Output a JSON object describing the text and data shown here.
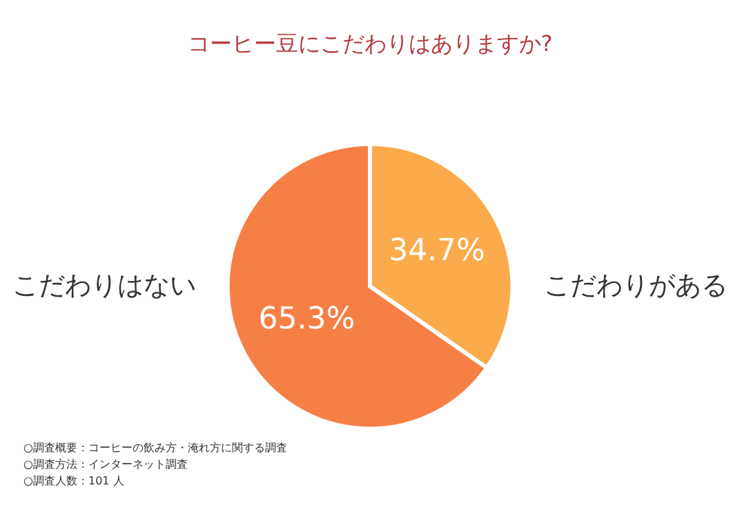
{
  "chart_data": {
    "type": "pie",
    "title": "コーヒー豆にこだわりはありますか?",
    "categories": [
      "こだわりがある",
      "こだわりはない"
    ],
    "values": [
      34.7,
      65.3
    ],
    "colors": [
      "#fbab4b",
      "#f67f46"
    ],
    "value_labels": [
      "34.7%",
      "65.3%"
    ],
    "legend": false,
    "annotations": [
      "○調査概要：コーヒーの飲み方・淹れ方に関する調査",
      "○調査方法：インターネット調査",
      "○調査人数：101 人"
    ]
  }
}
